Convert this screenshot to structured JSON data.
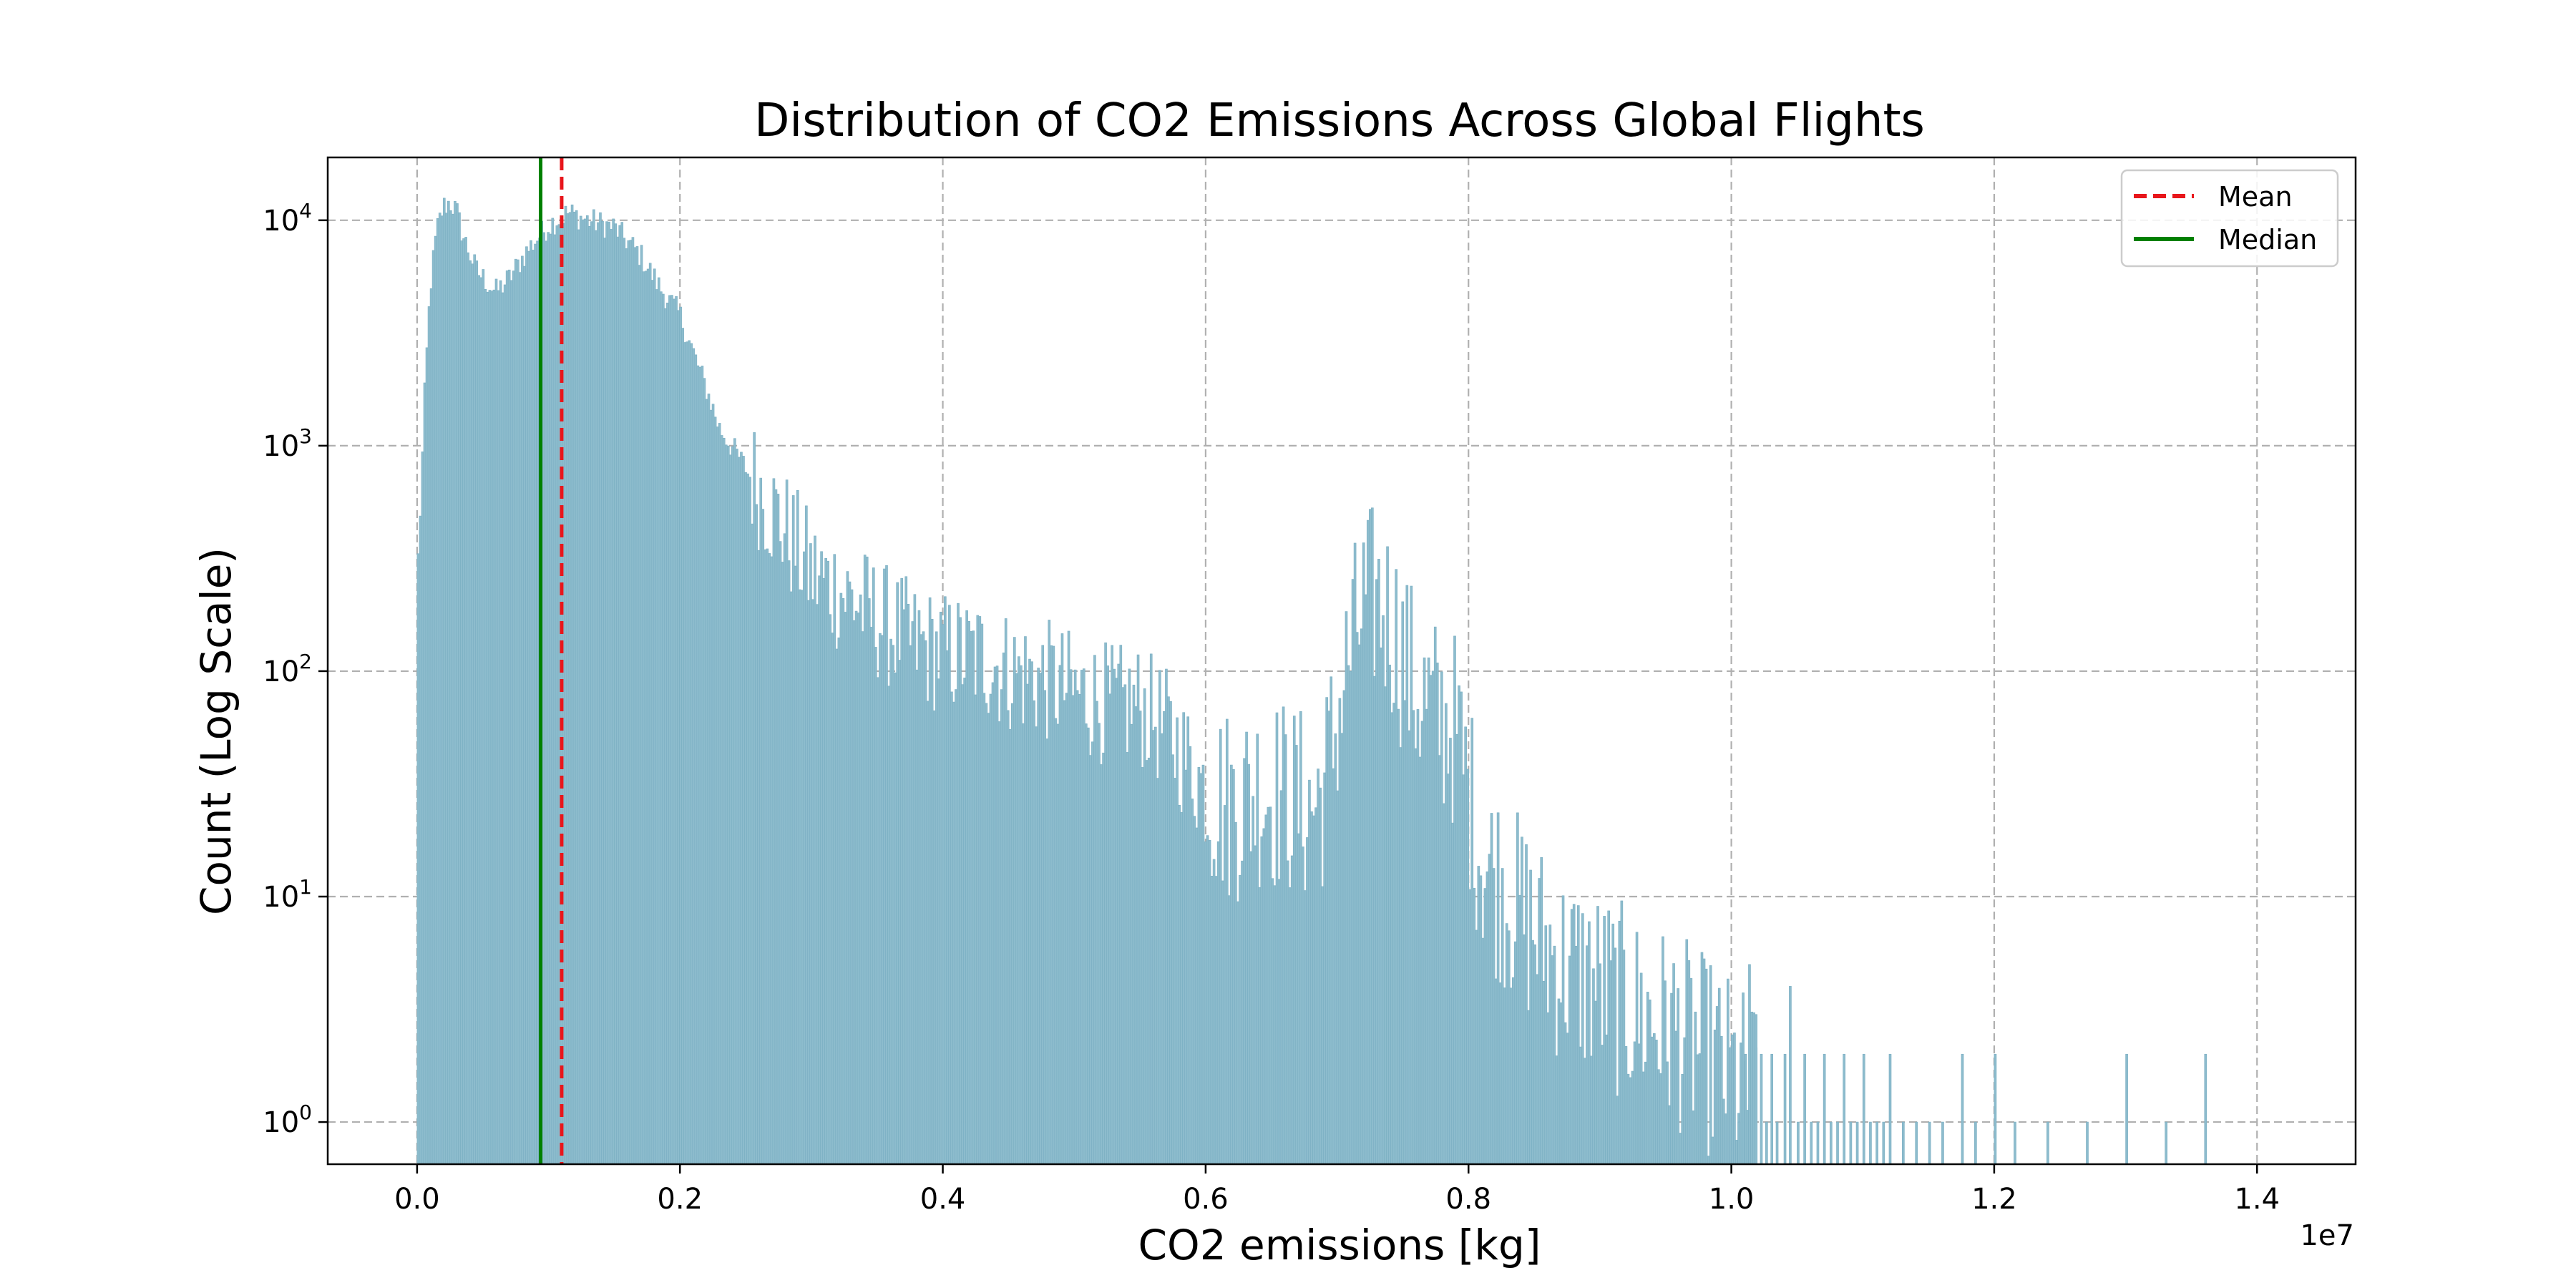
{
  "chart_data": {
    "type": "bar",
    "title": "Distribution of CO2 Emissions Across Global Flights",
    "xlabel": "CO2 emissions [kg]",
    "ylabel": "Count (Log Scale)",
    "x_offset_label": "1e7",
    "x_scale": "linear",
    "y_scale": "log",
    "xlim": [
      -0.068,
      1.475
    ],
    "x_units": "1e7 kg",
    "ylim": [
      0.65,
      19000
    ],
    "x_ticks": [
      0.0,
      0.2,
      0.4,
      0.6,
      0.8,
      1.0,
      1.2,
      1.4
    ],
    "x_tick_labels": [
      "0.0",
      "0.2",
      "0.4",
      "0.6",
      "0.8",
      "1.0",
      "1.2",
      "1.4"
    ],
    "y_ticks": [
      1,
      10,
      100,
      1000,
      10000
    ],
    "y_tick_labels": [
      {
        "base": "10",
        "exp": "0"
      },
      {
        "base": "10",
        "exp": "1"
      },
      {
        "base": "10",
        "exp": "2"
      },
      {
        "base": "10",
        "exp": "3"
      },
      {
        "base": "10",
        "exp": "4"
      }
    ],
    "grid": true,
    "legend_position": "top-right",
    "colors": {
      "bars": "#8dbccd",
      "bar_edge": "#7aaec2",
      "mean": "#e8161b",
      "median": "#008000",
      "grid": "#b0b0b0"
    },
    "series": [
      {
        "name": "Count",
        "envelope_x": [
          0.0,
          0.003,
          0.006,
          0.01,
          0.015,
          0.02,
          0.025,
          0.03,
          0.035,
          0.045,
          0.06,
          0.07,
          0.085,
          0.1,
          0.115,
          0.13,
          0.15,
          0.17,
          0.185,
          0.2,
          0.21,
          0.22,
          0.23,
          0.25,
          0.28,
          0.3,
          0.33,
          0.35,
          0.38,
          0.4,
          0.43,
          0.45,
          0.48,
          0.5,
          0.53,
          0.55,
          0.57,
          0.58,
          0.6,
          0.62,
          0.64,
          0.66,
          0.68,
          0.69,
          0.7,
          0.71,
          0.72,
          0.73,
          0.74,
          0.75,
          0.76,
          0.78,
          0.79,
          0.8,
          0.81,
          0.83,
          0.85,
          0.87,
          0.9,
          0.93,
          0.96,
          0.98,
          1.0,
          1.02
        ],
        "envelope_y": [
          250,
          600,
          1800,
          5000,
          9000,
          11500,
          12000,
          11000,
          8500,
          6000,
          4800,
          5500,
          7500,
          9500,
          10800,
          10000,
          9300,
          7000,
          5000,
          3800,
          2600,
          1800,
          1200,
          800,
          420,
          270,
          210,
          170,
          130,
          120,
          115,
          100,
          90,
          80,
          70,
          70,
          55,
          45,
          30,
          25,
          30,
          28,
          24,
          30,
          60,
          120,
          190,
          210,
          170,
          120,
          80,
          60,
          55,
          30,
          15,
          10,
          7,
          5,
          4,
          3,
          2.5,
          2,
          1.6,
          1.3
        ]
      }
    ],
    "sparse_tail": [
      {
        "x": 1.005,
        "y": 1
      },
      {
        "x": 1.01,
        "y": 2
      },
      {
        "x": 1.013,
        "y": 5
      },
      {
        "x": 1.018,
        "y": 3
      },
      {
        "x": 1.022,
        "y": 2
      },
      {
        "x": 1.026,
        "y": 1
      },
      {
        "x": 1.03,
        "y": 2
      },
      {
        "x": 1.034,
        "y": 1
      },
      {
        "x": 1.04,
        "y": 2
      },
      {
        "x": 1.044,
        "y": 4
      },
      {
        "x": 1.05,
        "y": 1
      },
      {
        "x": 1.055,
        "y": 2
      },
      {
        "x": 1.06,
        "y": 1
      },
      {
        "x": 1.065,
        "y": 1
      },
      {
        "x": 1.07,
        "y": 2
      },
      {
        "x": 1.075,
        "y": 1
      },
      {
        "x": 1.08,
        "y": 1
      },
      {
        "x": 1.085,
        "y": 2
      },
      {
        "x": 1.09,
        "y": 1
      },
      {
        "x": 1.095,
        "y": 1
      },
      {
        "x": 1.1,
        "y": 2
      },
      {
        "x": 1.105,
        "y": 1
      },
      {
        "x": 1.11,
        "y": 1
      },
      {
        "x": 1.115,
        "y": 1
      },
      {
        "x": 1.12,
        "y": 2
      },
      {
        "x": 1.13,
        "y": 1
      },
      {
        "x": 1.14,
        "y": 1
      },
      {
        "x": 1.15,
        "y": 1
      },
      {
        "x": 1.16,
        "y": 1
      },
      {
        "x": 1.175,
        "y": 2
      },
      {
        "x": 1.185,
        "y": 1
      },
      {
        "x": 1.2,
        "y": 2
      },
      {
        "x": 1.215,
        "y": 1
      },
      {
        "x": 1.24,
        "y": 1
      },
      {
        "x": 1.27,
        "y": 1
      },
      {
        "x": 1.3,
        "y": 2
      },
      {
        "x": 1.33,
        "y": 1
      },
      {
        "x": 1.36,
        "y": 2
      }
    ],
    "mean": {
      "label": "Mean",
      "x": 0.11,
      "style": "dashed"
    },
    "median": {
      "label": "Median",
      "x": 0.094,
      "style": "solid"
    }
  }
}
